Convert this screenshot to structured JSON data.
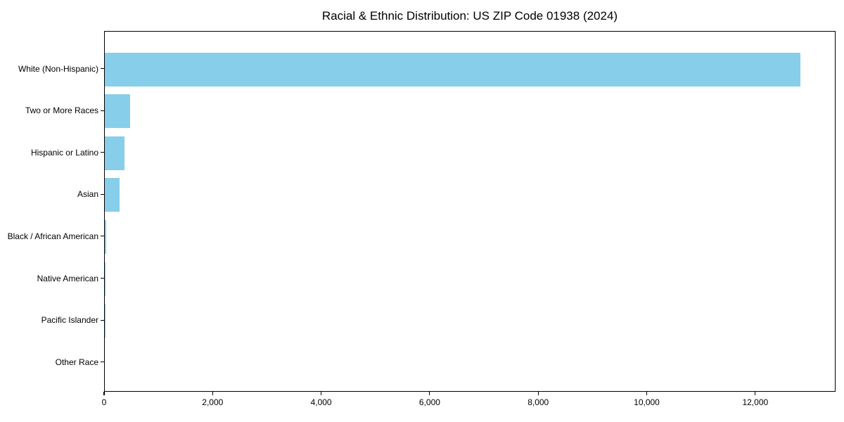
{
  "chart_data": {
    "type": "bar",
    "orientation": "horizontal",
    "title": "Racial & Ethnic Distribution: US ZIP Code 01938 (2024)",
    "categories": [
      "White (Non-Hispanic)",
      "Two or More Races",
      "Hispanic or Latino",
      "Asian",
      "Black / African American",
      "Native American",
      "Pacific Islander",
      "Other Race"
    ],
    "values": [
      12820,
      470,
      368,
      275,
      25,
      10,
      5,
      0
    ],
    "bar_color": "#87CEEB",
    "xlabel": "",
    "ylabel": "",
    "xlim": [
      0,
      13480
    ],
    "x_ticks": [
      {
        "value": 0,
        "label": "0"
      },
      {
        "value": 2000,
        "label": "2,000"
      },
      {
        "value": 4000,
        "label": "4,000"
      },
      {
        "value": 6000,
        "label": "6,000"
      },
      {
        "value": 8000,
        "label": "8,000"
      },
      {
        "value": 10000,
        "label": "10,000"
      },
      {
        "value": 12000,
        "label": "12,000"
      }
    ],
    "grid": false,
    "legend": null
  }
}
